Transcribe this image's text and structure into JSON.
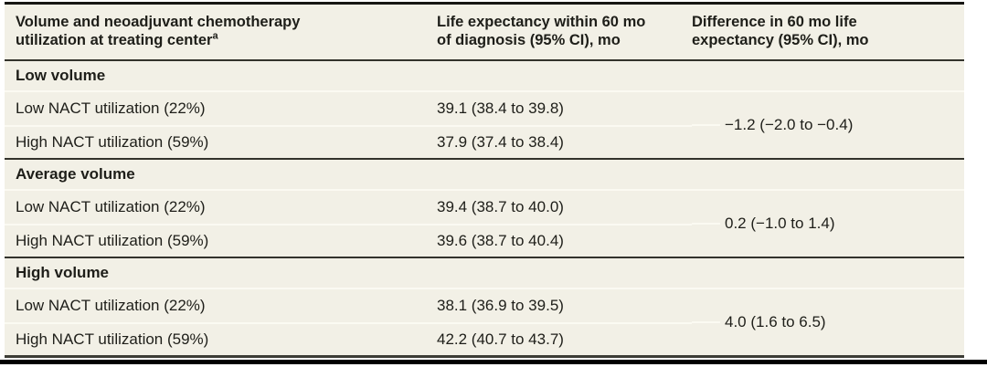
{
  "colors": {
    "table-bg": "#f2f0e6",
    "divider": "#fbfaf2",
    "section-line": "#33332c",
    "top-border": "#161613",
    "text": "#1e1e19",
    "bottom-bar": "#000000"
  },
  "table": {
    "header": {
      "col1_line1": "Volume and neoadjuvant chemotherapy",
      "col1_line2": "utilization at treating center",
      "col1_footnote_marker": "a",
      "col2_line1": "Life expectancy within 60 mo",
      "col2_line2": "of diagnosis (95% CI), mo",
      "col3_line1": "Difference in 60 mo life",
      "col3_line2": "expectancy (95% CI), mo"
    },
    "sections": [
      {
        "title": "Low volume",
        "rows": [
          {
            "label": "Low NACT utilization (22%)",
            "life_expectancy": "39.1 (38.4 to 39.8)"
          },
          {
            "label": "High NACT utilization (59%)",
            "life_expectancy": "37.9 (37.4 to 38.4)"
          }
        ],
        "difference": "−1.2 (−2.0 to −0.4)"
      },
      {
        "title": "Average volume",
        "rows": [
          {
            "label": "Low NACT utilization (22%)",
            "life_expectancy": "39.4 (38.7 to 40.0)"
          },
          {
            "label": "High NACT utilization (59%)",
            "life_expectancy": "39.6 (38.7 to 40.4)"
          }
        ],
        "difference": "0.2 (−1.0 to 1.4)"
      },
      {
        "title": "High volume",
        "rows": [
          {
            "label": "Low NACT utilization (22%)",
            "life_expectancy": "38.1 (36.9 to 39.5)"
          },
          {
            "label": "High NACT utilization (59%)",
            "life_expectancy": "42.2 (40.7 to 43.7)"
          }
        ],
        "difference": "4.0 (1.6 to 6.5)"
      }
    ]
  }
}
